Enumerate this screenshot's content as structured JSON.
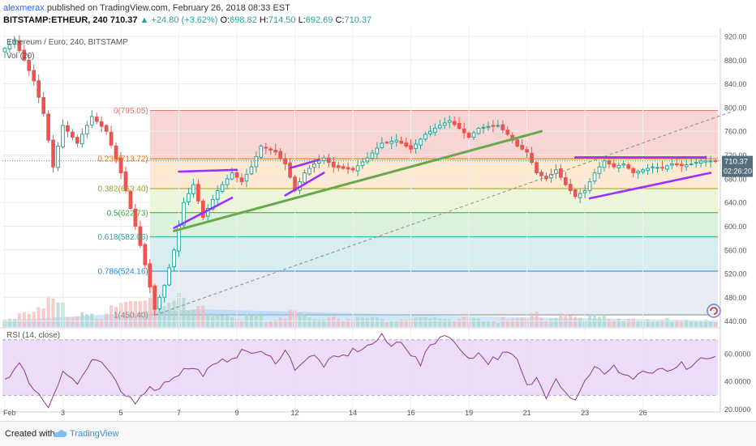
{
  "header": {
    "author": "alexmerax",
    "published_text": "published on TradingView.com, February 26, 2018 08:33 EST",
    "symbol": "BITSTAMP:ETHEUR, 240",
    "last": "710.37",
    "change_arrow": "▲",
    "change": "+24.80 (+3.62%)",
    "o_label": "O:",
    "o_value": "698.82",
    "h_label": "H:",
    "h_value": "714.50",
    "l_label": "L:",
    "l_value": "692.69",
    "c_label": "C:",
    "c_value": "710.37"
  },
  "chart_labels": {
    "instrument": "Ethereum / Euro, 240, BITSTAMP",
    "volume": "Vol (20)",
    "rsi": "RSI (14, close)",
    "price_tag": "710.37",
    "time_tag": "02:26:20"
  },
  "footer": {
    "created_with": "Created with",
    "brand": "TradingView"
  },
  "colors": {
    "up": "#26a69a",
    "down": "#ef5350",
    "candle_up_body": "#ffffff",
    "trendline_green": "#6aa84f",
    "trendline_purple": "#9b30ff",
    "rsi_line": "#8e3a8e",
    "price_tag": "#546e7a"
  },
  "chart_data": [
    {
      "type": "candlestick",
      "title": "Ethereum / Euro, 240, BITSTAMP",
      "y_axis": {
        "range": [
          430,
          935
        ],
        "ticks": [
          "920.00",
          "880.00",
          "840.00",
          "800.00",
          "760.00",
          "720.00",
          "680.00",
          "640.00",
          "600.00",
          "560.00",
          "520.00",
          "480.00",
          "440.00"
        ],
        "tick_values": [
          920,
          880,
          840,
          800,
          760,
          720,
          680,
          640,
          600,
          560,
          520,
          480,
          440
        ]
      },
      "x_axis": {
        "labels": [
          "Feb",
          "3",
          "5",
          "7",
          "9",
          "12",
          "14",
          "16",
          "19",
          "21",
          "23",
          "26"
        ],
        "label_index": [
          0,
          12,
          24,
          36,
          48,
          60,
          72,
          84,
          96,
          108,
          120,
          132
        ],
        "bar_count": 148
      },
      "key_points": [
        {
          "i": 0,
          "p": 900
        },
        {
          "i": 2,
          "p": 912
        },
        {
          "i": 4,
          "p": 880
        },
        {
          "i": 6,
          "p": 845
        },
        {
          "i": 8,
          "p": 790
        },
        {
          "i": 10,
          "p": 700
        },
        {
          "i": 12,
          "p": 770
        },
        {
          "i": 15,
          "p": 740
        },
        {
          "i": 18,
          "p": 785
        },
        {
          "i": 21,
          "p": 760
        },
        {
          "i": 24,
          "p": 690
        },
        {
          "i": 27,
          "p": 600
        },
        {
          "i": 29,
          "p": 535
        },
        {
          "i": 31,
          "p": 460
        },
        {
          "i": 33,
          "p": 500
        },
        {
          "i": 35,
          "p": 560
        },
        {
          "i": 37,
          "p": 640
        },
        {
          "i": 39,
          "p": 670
        },
        {
          "i": 41,
          "p": 615
        },
        {
          "i": 44,
          "p": 660
        },
        {
          "i": 47,
          "p": 690
        },
        {
          "i": 49,
          "p": 675
        },
        {
          "i": 51,
          "p": 700
        },
        {
          "i": 53,
          "p": 735
        },
        {
          "i": 56,
          "p": 725
        },
        {
          "i": 58,
          "p": 705
        },
        {
          "i": 60,
          "p": 660
        },
        {
          "i": 62,
          "p": 690
        },
        {
          "i": 64,
          "p": 705
        },
        {
          "i": 66,
          "p": 715
        },
        {
          "i": 68,
          "p": 700
        },
        {
          "i": 72,
          "p": 695
        },
        {
          "i": 75,
          "p": 715
        },
        {
          "i": 78,
          "p": 740
        },
        {
          "i": 81,
          "p": 745
        },
        {
          "i": 84,
          "p": 730
        },
        {
          "i": 87,
          "p": 755
        },
        {
          "i": 90,
          "p": 770
        },
        {
          "i": 92,
          "p": 778
        },
        {
          "i": 94,
          "p": 765
        },
        {
          "i": 96,
          "p": 750
        },
        {
          "i": 98,
          "p": 765
        },
        {
          "i": 100,
          "p": 768
        },
        {
          "i": 102,
          "p": 770
        },
        {
          "i": 104,
          "p": 755
        },
        {
          "i": 106,
          "p": 735
        },
        {
          "i": 108,
          "p": 725
        },
        {
          "i": 110,
          "p": 690
        },
        {
          "i": 112,
          "p": 680
        },
        {
          "i": 114,
          "p": 695
        },
        {
          "i": 116,
          "p": 670
        },
        {
          "i": 118,
          "p": 650
        },
        {
          "i": 120,
          "p": 660
        },
        {
          "i": 122,
          "p": 690
        },
        {
          "i": 124,
          "p": 710
        },
        {
          "i": 126,
          "p": 700
        },
        {
          "i": 128,
          "p": 705
        },
        {
          "i": 130,
          "p": 690
        },
        {
          "i": 132,
          "p": 695
        },
        {
          "i": 134,
          "p": 700
        },
        {
          "i": 136,
          "p": 698
        },
        {
          "i": 138,
          "p": 705
        },
        {
          "i": 140,
          "p": 702
        },
        {
          "i": 142,
          "p": 705
        },
        {
          "i": 144,
          "p": 710
        }
      ],
      "fibonacci": {
        "levels": [
          {
            "label": "0(795.05)",
            "ratio": 0,
            "value": 795.05,
            "fill": "#f4c7c3"
          },
          {
            "label": "0.236(713.72)",
            "ratio": 0.236,
            "value": 713.72,
            "fill": "#fde3c4"
          },
          {
            "label": "0.382(663.40)",
            "ratio": 0.382,
            "value": 663.4,
            "fill": "#e6f4cc"
          },
          {
            "label": "0.5(622.73)",
            "ratio": 0.5,
            "value": 622.73,
            "fill": "#cdeccf"
          },
          {
            "label": "0.618(582.06)",
            "ratio": 0.618,
            "value": 582.06,
            "fill": "#c9e7ea"
          },
          {
            "label": "0.786(524.16)",
            "ratio": 0.786,
            "value": 524.16,
            "fill": "#dde4f0"
          },
          {
            "label": "1(450.40)",
            "ratio": 1,
            "value": 450.4,
            "fill": "#dcdcdc"
          }
        ],
        "line_colors": [
          "#e57373",
          "#ef6c00",
          "#9e9d24",
          "#43a047",
          "#26a69a",
          "#1e88e5",
          "#888888"
        ],
        "start_index": 30
      },
      "trendlines": [
        {
          "color": "green",
          "from": {
            "i": 35,
            "p": 592
          },
          "to": {
            "i": 111,
            "p": 760
          }
        },
        {
          "color": "purple",
          "from": {
            "i": 35,
            "p": 597
          },
          "to": {
            "i": 47,
            "p": 648
          }
        },
        {
          "color": "purple",
          "from": {
            "i": 36,
            "p": 692
          },
          "to": {
            "i": 48,
            "p": 695
          }
        },
        {
          "color": "purple",
          "from": {
            "i": 58,
            "p": 652
          },
          "to": {
            "i": 66,
            "p": 690
          }
        },
        {
          "color": "purple",
          "from": {
            "i": 59,
            "p": 698
          },
          "to": {
            "i": 65,
            "p": 712
          }
        },
        {
          "color": "purple",
          "from": {
            "i": 118,
            "p": 716
          },
          "to": {
            "i": 145,
            "p": 716
          }
        },
        {
          "color": "purple",
          "from": {
            "i": 121,
            "p": 647
          },
          "to": {
            "i": 146,
            "p": 690
          }
        }
      ],
      "dashed_line": {
        "from": {
          "i": 31,
          "p": 450
        },
        "to": {
          "i": 151,
          "p": 795
        }
      },
      "last_price": 710.37
    },
    {
      "type": "line",
      "title": "RSI (14, close)",
      "y_axis": {
        "ticks": [
          "60.0000",
          "40.0000",
          "20.0000"
        ],
        "tick_values": [
          60,
          40,
          20
        ],
        "range": [
          18,
          78
        ]
      },
      "bands": [
        30,
        70
      ],
      "key_points": [
        {
          "i": 0,
          "v": 42
        },
        {
          "i": 3,
          "v": 52
        },
        {
          "i": 6,
          "v": 35
        },
        {
          "i": 9,
          "v": 22
        },
        {
          "i": 12,
          "v": 48
        },
        {
          "i": 15,
          "v": 38
        },
        {
          "i": 18,
          "v": 55
        },
        {
          "i": 21,
          "v": 50
        },
        {
          "i": 24,
          "v": 32
        },
        {
          "i": 27,
          "v": 26
        },
        {
          "i": 29,
          "v": 34
        },
        {
          "i": 32,
          "v": 36
        },
        {
          "i": 35,
          "v": 44
        },
        {
          "i": 38,
          "v": 50
        },
        {
          "i": 41,
          "v": 46
        },
        {
          "i": 44,
          "v": 52
        },
        {
          "i": 47,
          "v": 58
        },
        {
          "i": 50,
          "v": 62
        },
        {
          "i": 53,
          "v": 60
        },
        {
          "i": 56,
          "v": 55
        },
        {
          "i": 58,
          "v": 62
        },
        {
          "i": 60,
          "v": 50
        },
        {
          "i": 62,
          "v": 55
        },
        {
          "i": 64,
          "v": 58
        },
        {
          "i": 66,
          "v": 52
        },
        {
          "i": 68,
          "v": 56
        },
        {
          "i": 70,
          "v": 58
        },
        {
          "i": 72,
          "v": 62
        },
        {
          "i": 75,
          "v": 65
        },
        {
          "i": 78,
          "v": 72
        },
        {
          "i": 80,
          "v": 65
        },
        {
          "i": 82,
          "v": 70
        },
        {
          "i": 84,
          "v": 60
        },
        {
          "i": 86,
          "v": 52
        },
        {
          "i": 88,
          "v": 66
        },
        {
          "i": 90,
          "v": 72
        },
        {
          "i": 92,
          "v": 74
        },
        {
          "i": 94,
          "v": 62
        },
        {
          "i": 96,
          "v": 58
        },
        {
          "i": 98,
          "v": 60
        },
        {
          "i": 100,
          "v": 54
        },
        {
          "i": 102,
          "v": 58
        },
        {
          "i": 104,
          "v": 60
        },
        {
          "i": 106,
          "v": 55
        },
        {
          "i": 108,
          "v": 36
        },
        {
          "i": 110,
          "v": 42
        },
        {
          "i": 112,
          "v": 30
        },
        {
          "i": 114,
          "v": 44
        },
        {
          "i": 116,
          "v": 32
        },
        {
          "i": 118,
          "v": 28
        },
        {
          "i": 120,
          "v": 40
        },
        {
          "i": 122,
          "v": 52
        },
        {
          "i": 124,
          "v": 44
        },
        {
          "i": 126,
          "v": 50
        },
        {
          "i": 128,
          "v": 46
        },
        {
          "i": 130,
          "v": 42
        },
        {
          "i": 132,
          "v": 48
        },
        {
          "i": 134,
          "v": 44
        },
        {
          "i": 136,
          "v": 50
        },
        {
          "i": 138,
          "v": 46
        },
        {
          "i": 140,
          "v": 52
        },
        {
          "i": 142,
          "v": 48
        },
        {
          "i": 144,
          "v": 56
        }
      ]
    }
  ]
}
